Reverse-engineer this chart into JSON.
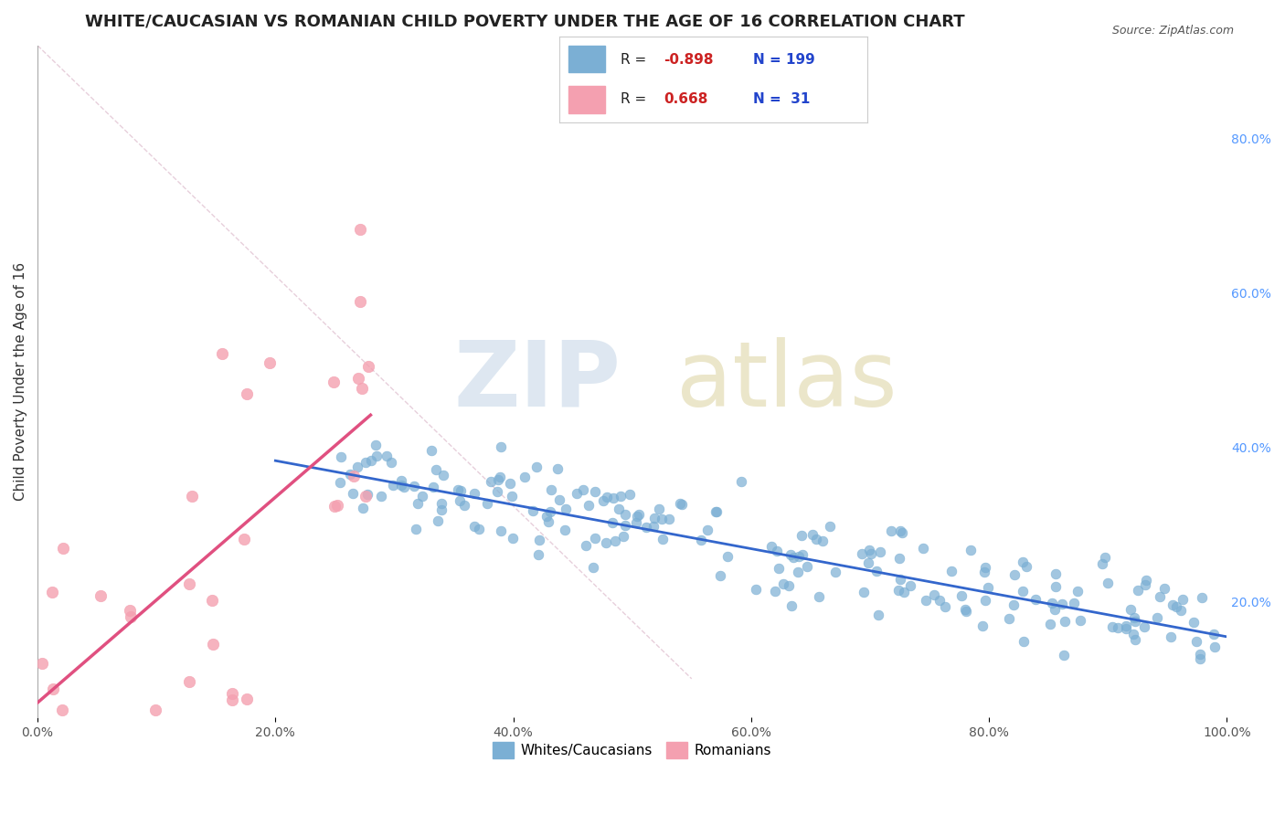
{
  "title": "WHITE/CAUCASIAN VS ROMANIAN CHILD POVERTY UNDER THE AGE OF 16 CORRELATION CHART",
  "source": "Source: ZipAtlas.com",
  "ylabel": "Child Poverty Under the Age of 16",
  "blue_R": -0.898,
  "blue_N": 199,
  "pink_R": 0.668,
  "pink_N": 31,
  "blue_color": "#7bafd4",
  "pink_color": "#f4a0b0",
  "blue_line_color": "#3366cc",
  "pink_line_color": "#e05080",
  "blue_label": "Whites/Caucasians",
  "pink_label": "Romanians",
  "watermark_color": "#c8d8e8",
  "xlim": [
    0,
    1.0
  ],
  "ylim": [
    0.05,
    0.92
  ],
  "ytick_right_vals": [
    0.2,
    0.4,
    0.6,
    0.8
  ],
  "ytick_right_labels": [
    "20.0%",
    "40.0%",
    "60.0%",
    "80.0%"
  ],
  "grid_color": "#cccccc",
  "background_color": "#ffffff",
  "title_fontsize": 13,
  "axis_label_fontsize": 11,
  "tick_fontsize": 10
}
